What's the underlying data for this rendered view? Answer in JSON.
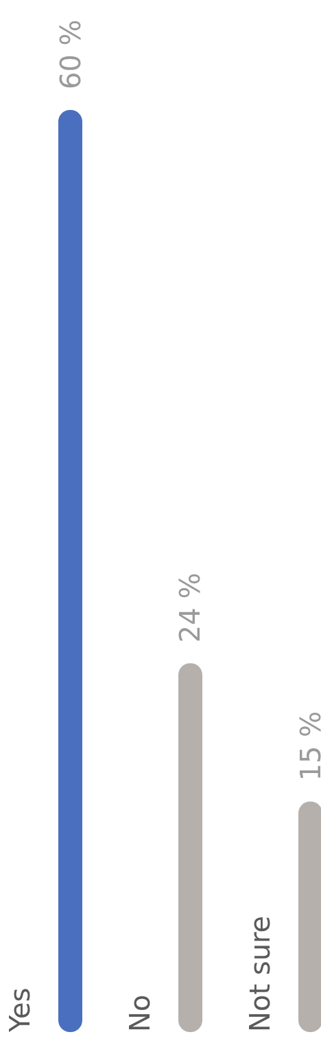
{
  "chart_data": {
    "type": "bar",
    "categories": [
      "Yes",
      "No",
      "Not sure"
    ],
    "values": [
      60,
      24,
      15
    ],
    "colors": [
      "#4a6fbf",
      "#b5b0ac",
      "#b5b0ac"
    ],
    "value_labels": [
      "60 %",
      "24 %",
      "15 %"
    ]
  }
}
